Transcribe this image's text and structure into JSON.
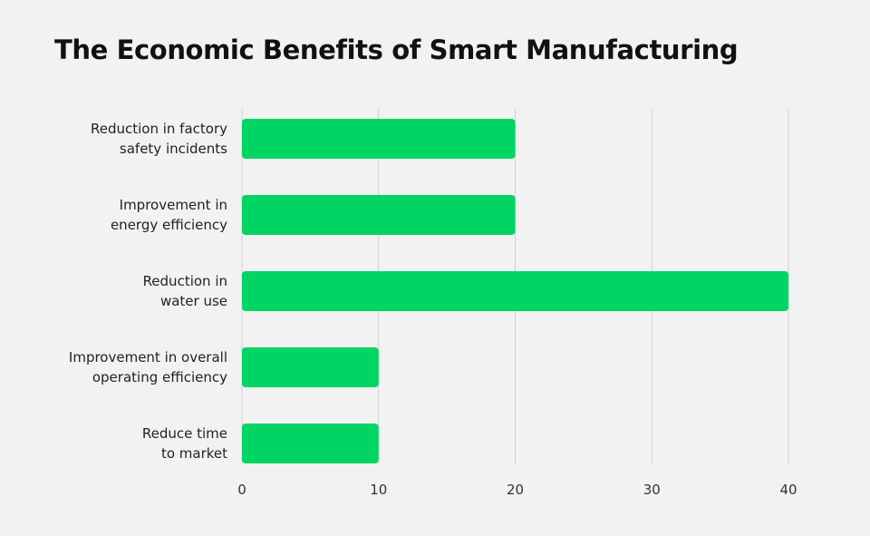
{
  "chart_data": {
    "type": "bar",
    "orientation": "horizontal",
    "title": "The Economic Benefits of Smart Manufacturing",
    "categories": [
      "Reduction in factory safety incidents",
      "Improvement in energy efficiency",
      "Reduction in water use",
      "Improvement in overall operating efficiency",
      "Reduce time to market"
    ],
    "category_lines": [
      [
        "Reduction in factory",
        "safety incidents"
      ],
      [
        "Improvement in",
        "energy efficiency"
      ],
      [
        "Reduction in",
        "water use"
      ],
      [
        "Improvement in overall",
        "operating efficiency"
      ],
      [
        "Reduce time",
        "to market"
      ]
    ],
    "values": [
      20,
      20,
      40,
      10,
      10
    ],
    "xlim": [
      0,
      40
    ],
    "xticks": [
      "0",
      "10",
      "20",
      "30",
      "40"
    ],
    "xlabel": "",
    "ylabel": "",
    "grid": true,
    "legend": "none",
    "bar_color": "#00d564"
  }
}
